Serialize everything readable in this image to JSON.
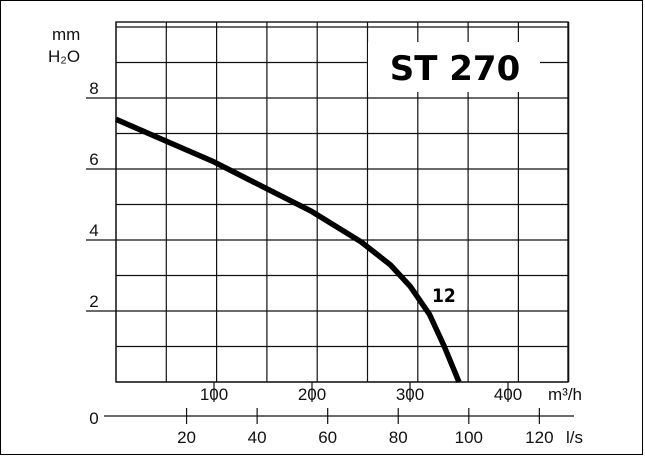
{
  "chart_data": {
    "type": "line",
    "title": "ST 270",
    "ylabel_line1": "mm",
    "ylabel_line2": "H₂O",
    "x_unit_top": "m³/h",
    "x_unit_bottom": "l/s",
    "ylim": [
      0,
      8
    ],
    "xlim": [
      0,
      350
    ],
    "y_ticks": [
      {
        "value": 0,
        "label": "0"
      },
      {
        "value": 2,
        "label": "2"
      },
      {
        "value": 4,
        "label": "4"
      },
      {
        "value": 6,
        "label": "6"
      },
      {
        "value": 8,
        "label": "8"
      }
    ],
    "x_ticks_top": [
      {
        "value": 100,
        "label": "100"
      },
      {
        "value": 200,
        "label": "200"
      },
      {
        "value": 300,
        "label": "300"
      },
      {
        "value": 400,
        "label": "400"
      }
    ],
    "x_ticks_bottom": [
      {
        "value": 20,
        "label": "20"
      },
      {
        "value": 40,
        "label": "40"
      },
      {
        "value": 60,
        "label": "60"
      },
      {
        "value": 80,
        "label": "80"
      },
      {
        "value": 100,
        "label": "100"
      },
      {
        "value": 120,
        "label": "120"
      }
    ],
    "grid": true,
    "series": [
      {
        "name": "12",
        "x": [
          0,
          50,
          100,
          150,
          200,
          250,
          280,
          300,
          320,
          335,
          350
        ],
        "y": [
          7.4,
          6.8,
          6.2,
          5.5,
          4.8,
          3.95,
          3.3,
          2.7,
          1.9,
          1.0,
          0
        ]
      }
    ]
  }
}
